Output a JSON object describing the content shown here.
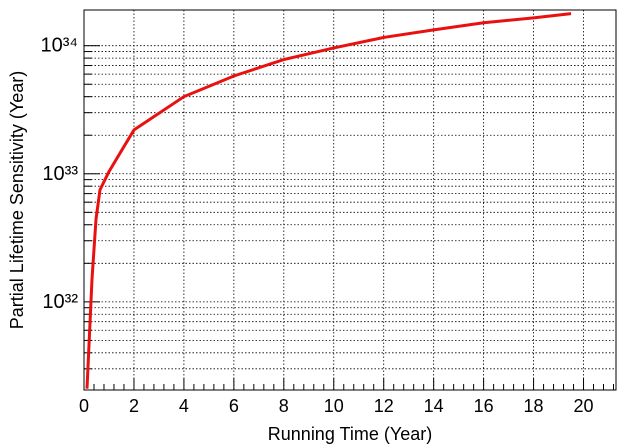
{
  "chart_data": {
    "type": "line",
    "x_label": "Running Time (Year)",
    "y_label": "Partial Lifetime Sensitivity (Year)",
    "log_y": true,
    "grid": true,
    "xlim": [
      0,
      21.3
    ],
    "ylim": [
      2.05e+31,
      1.9e+34
    ],
    "xticks": [
      0,
      2,
      4,
      6,
      8,
      10,
      12,
      14,
      16,
      18,
      20
    ],
    "yticks": [
      {
        "value": 1e+32,
        "label": "10³²"
      },
      {
        "value": 1e+33,
        "label": "10³³"
      },
      {
        "value": 1e+34,
        "label": "10³⁴"
      }
    ],
    "series": [
      {
        "color": "#e8110f",
        "x": [
          0.12,
          0.32,
          0.48,
          0.64,
          1,
          2,
          4,
          6,
          8,
          10,
          12,
          14,
          16,
          18,
          19.5
        ],
        "values": [
          2.1e+31,
          1.5e+32,
          4.4e+32,
          7.5e+32,
          1.04e+33,
          2.2e+33,
          4e+33,
          5.8e+33,
          7.8e+33,
          9.6e+33,
          1.16e+34,
          1.33e+34,
          1.51e+34,
          1.65e+34,
          1.78e+34
        ]
      }
    ]
  }
}
